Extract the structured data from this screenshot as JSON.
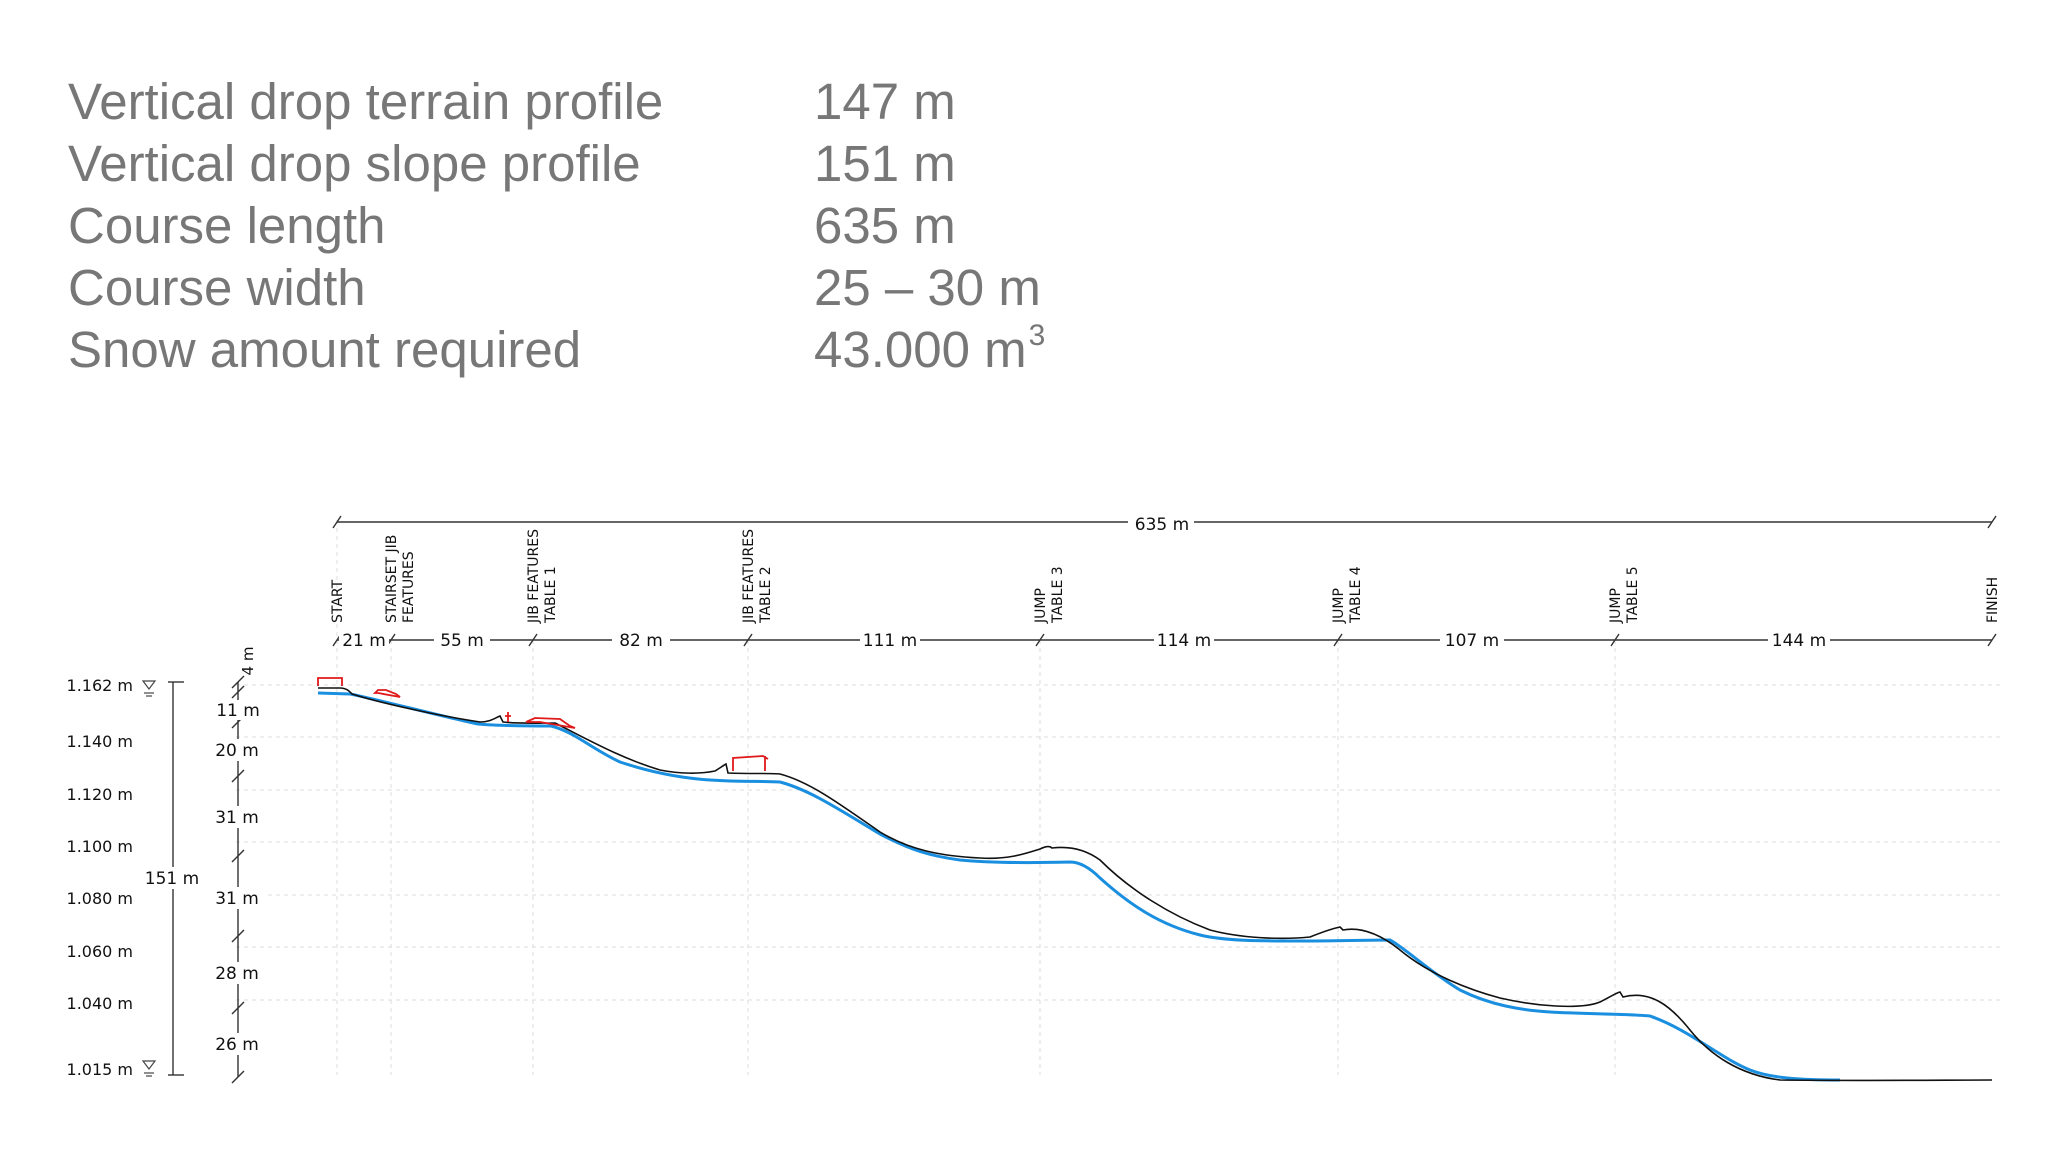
{
  "stats": [
    {
      "label": "Vertical drop terrain profile",
      "value": "147 m",
      "sup": ""
    },
    {
      "label": "Vertical drop slope profile",
      "value": "151 m",
      "sup": ""
    },
    {
      "label": "Course length",
      "value": "635 m",
      "sup": ""
    },
    {
      "label": "Course width",
      "value": "25 – 30 m",
      "sup": ""
    },
    {
      "label": "Snow amount required",
      "value": "43.000 m",
      "sup": "3"
    }
  ],
  "profile": {
    "total_length_label": "635  m",
    "stations": [
      {
        "label": "START",
        "label2": ""
      },
      {
        "label": "STAIRSET JIB",
        "label2": "FEATURES"
      },
      {
        "label": "JIB FEATURES",
        "label2": "TABLE 1"
      },
      {
        "label": "JIB FEATURES",
        "label2": "TABLE 2"
      },
      {
        "label": "JUMP",
        "label2": "TABLE 3"
      },
      {
        "label": "JUMP",
        "label2": "TABLE 4"
      },
      {
        "label": "JUMP",
        "label2": "TABLE 5"
      },
      {
        "label": "FINISH",
        "label2": ""
      }
    ],
    "segments": [
      "21  m",
      "55  m",
      "82  m",
      "111  m",
      "114  m",
      "107  m",
      "144  m"
    ],
    "elevation_ticks": [
      "1.162 m",
      "1.140 m",
      "1.120 m",
      "1.100 m",
      "1.080 m",
      "1.060 m",
      "1.040 m",
      "1.015 m"
    ],
    "total_drop_label": "151  m",
    "drop_segments": [
      "4  m",
      "11  m",
      "20  m",
      "31  m",
      "31  m",
      "28  m",
      "26  m"
    ],
    "colors": {
      "slope_profile": "#1a8fe0",
      "terrain_profile": "#111111",
      "features": "#e0191b",
      "grid": "#d9d9d9"
    }
  }
}
